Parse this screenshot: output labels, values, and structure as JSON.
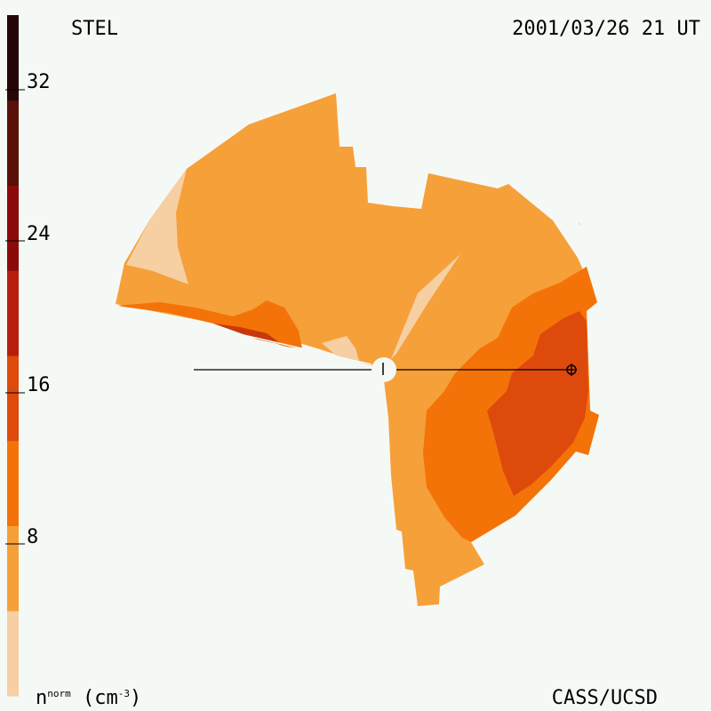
{
  "header": {
    "observatory": "STEL",
    "timestamp": "2001/03/26 21 UT"
  },
  "footer": {
    "credit": "CASS/UCSD",
    "units_base": "n",
    "units_super": "norm",
    "units_unit": "(cm",
    "units_exp": "-3",
    "units_close": ")"
  },
  "colorbar": {
    "ticks": [
      "32",
      "24",
      "16",
      "8"
    ],
    "bands": [
      "#f6cfa3",
      "#f6a03a",
      "#f47308",
      "#de4a0c",
      "#b81e0c",
      "#8c0a0a",
      "#581008",
      "#260606"
    ]
  },
  "chart_data": {
    "type": "heatmap",
    "title": "STEL",
    "timestamp": "2001/03/26 21 UT",
    "colorbar_range": [
      0,
      36
    ],
    "colorbar_ticks": [
      8,
      16,
      24,
      32
    ],
    "colorbar_label": "n^norm (cm^-3)",
    "regions": [
      {
        "level": "0-4",
        "color": "#f6cfa3"
      },
      {
        "level": "4-12",
        "color": "#f6a03a"
      },
      {
        "level": "12-16",
        "color": "#f47308"
      },
      {
        "level": "16-20",
        "color": "#de4a0c"
      }
    ],
    "markers": [
      "Sun (center)",
      "Earth (⊕)"
    ]
  }
}
